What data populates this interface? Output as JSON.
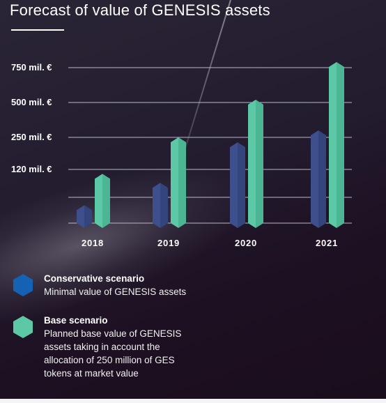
{
  "title": "Forecast of value of GENESIS assets",
  "colors": {
    "conservative": "#3d4f8c",
    "base": "#5cc8a5",
    "legend_conservative": "#1561b3",
    "legend_base": "#5cc8a5",
    "grid": "#b9b9c4"
  },
  "chart_data": {
    "type": "bar",
    "title": "Forecast of value of GENESIS assets",
    "categories": [
      "2018",
      "2019",
      "2020",
      "2021"
    ],
    "y_tick_values": [
      120,
      250,
      500,
      750
    ],
    "y_tick_labels": [
      "120 mil. €",
      "250 mil. €",
      "500 mil. €",
      "750 mil. €"
    ],
    "xlabel": "",
    "ylabel": "",
    "grid": true,
    "legend_position": "bottom",
    "series": [
      {
        "name": "Conservative scenario",
        "values": [
          40,
          90,
          230,
          300
        ]
      },
      {
        "name": "Base scenario",
        "values": [
          110,
          250,
          520,
          790
        ]
      }
    ]
  },
  "legend": [
    {
      "title": "Conservative scenario",
      "description": "Minimal value of GENESIS assets",
      "icon": "hexagon-icon"
    },
    {
      "title": "Base scenario",
      "description": "Planned base value of GENESIS assets taking in account the allocation of 250 million of GES tokens at market value",
      "icon": "hexagon-icon"
    }
  ]
}
